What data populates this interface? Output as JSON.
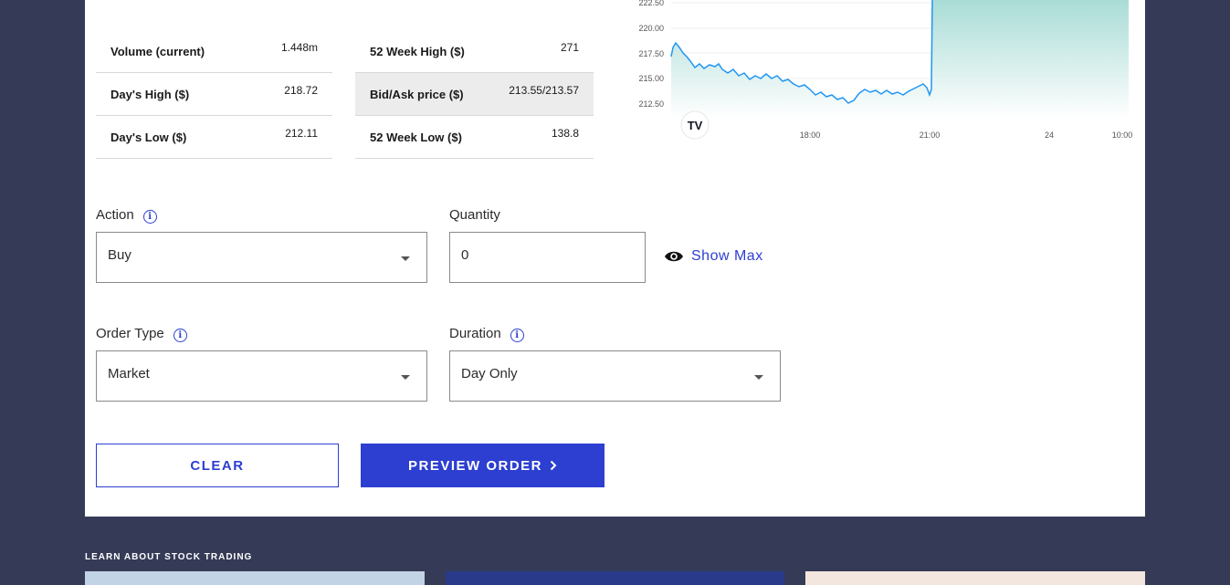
{
  "stats": {
    "col1": [
      {
        "label": "Volume (current)",
        "value": "1.448m"
      },
      {
        "label": "Day's High ($)",
        "value": "218.72"
      },
      {
        "label": "Day's Low ($)",
        "value": "212.11"
      }
    ],
    "col2": [
      {
        "label": "52 Week High ($)",
        "value": "271"
      },
      {
        "label": "Bid/Ask price ($)",
        "value": "213.55/213.57"
      },
      {
        "label": "52 Week Low ($)",
        "value": "138.8"
      }
    ]
  },
  "chart_data": {
    "type": "area",
    "y_ticks": [
      "222.50",
      "220.00",
      "217.50",
      "215.00",
      "212.50"
    ],
    "x_ticks": [
      "18:00",
      "21:00",
      "24",
      "10:00"
    ],
    "logo": "TV",
    "line_color": "#2196f3",
    "fill_color": "#c8ebe6"
  },
  "form": {
    "action": {
      "label": "Action",
      "value": "Buy"
    },
    "quantity": {
      "label": "Quantity",
      "value": "0"
    },
    "show_max": "Show Max",
    "order_type": {
      "label": "Order Type",
      "value": "Market"
    },
    "duration": {
      "label": "Duration",
      "value": "Day Only"
    },
    "info_glyph": "i"
  },
  "buttons": {
    "clear": "CLEAR",
    "preview": "PREVIEW ORDER"
  },
  "learn": {
    "title": "LEARN ABOUT STOCK TRADING"
  },
  "colors": {
    "accent": "#2d3fd0",
    "background": "#353a57"
  }
}
